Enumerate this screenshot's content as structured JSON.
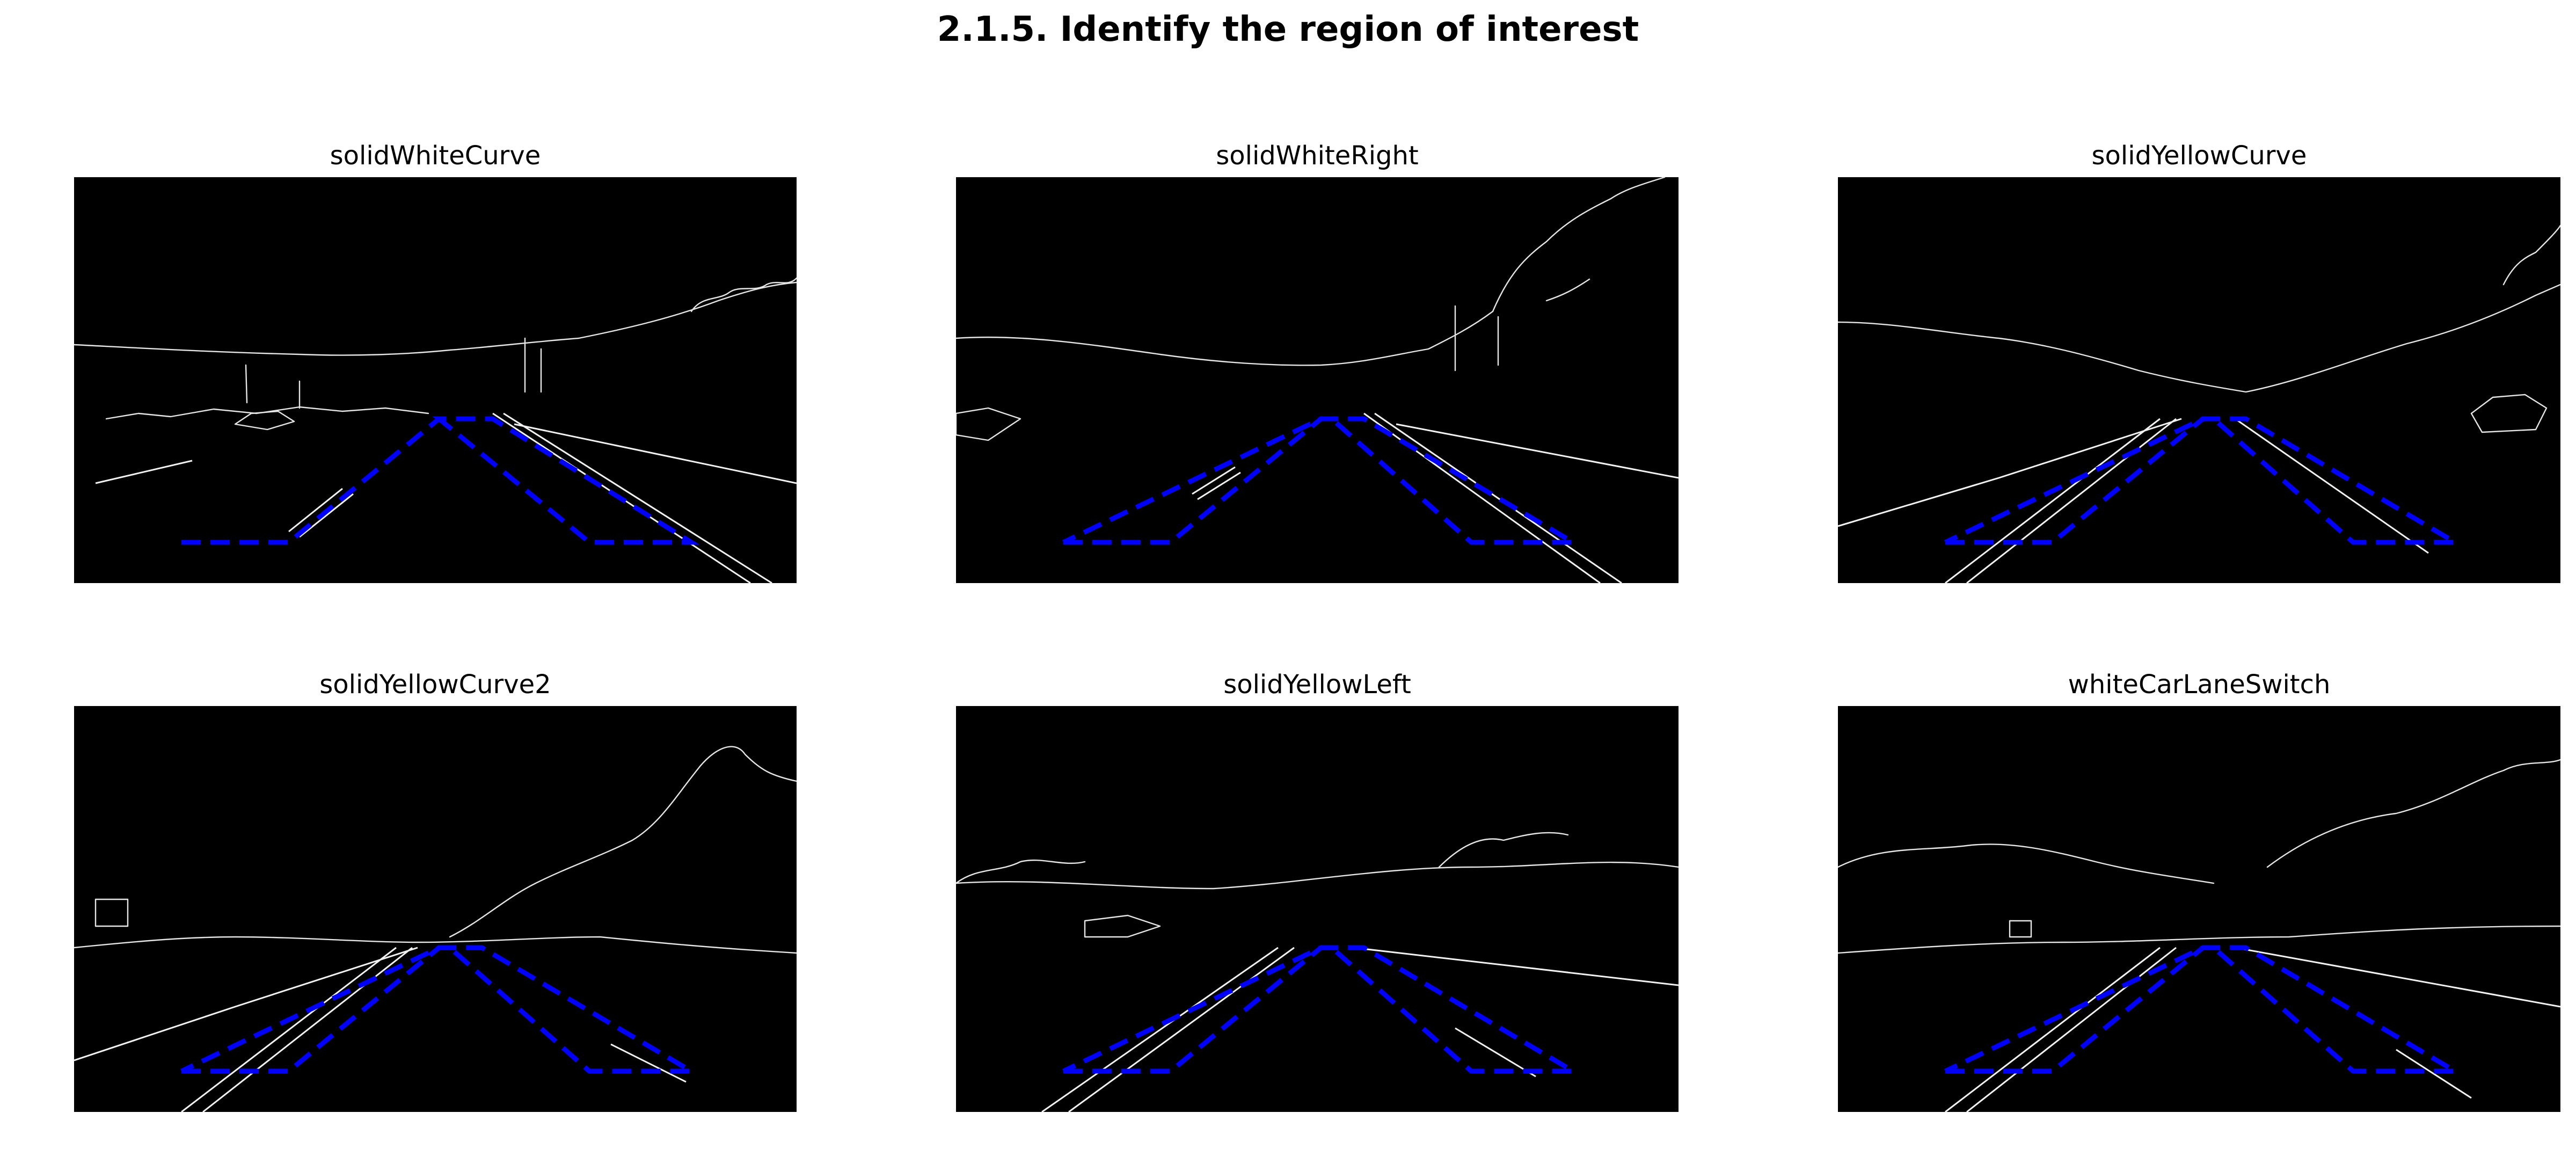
{
  "figure": {
    "suptitle": "2.1.5. Identify the region of interest",
    "panels": [
      {
        "title": "solidWhiteCurve",
        "roi_color": "#0000ff"
      },
      {
        "title": "solidWhiteRight",
        "roi_color": "#0000ff"
      },
      {
        "title": "solidYellowCurve",
        "roi_color": "#0000ff"
      },
      {
        "title": "solidYellowCurve2",
        "roi_color": "#0000ff"
      },
      {
        "title": "solidYellowLeft",
        "roi_color": "#0000ff"
      },
      {
        "title": "whiteCarLaneSwitch",
        "roi_color": "#0000ff"
      }
    ]
  }
}
